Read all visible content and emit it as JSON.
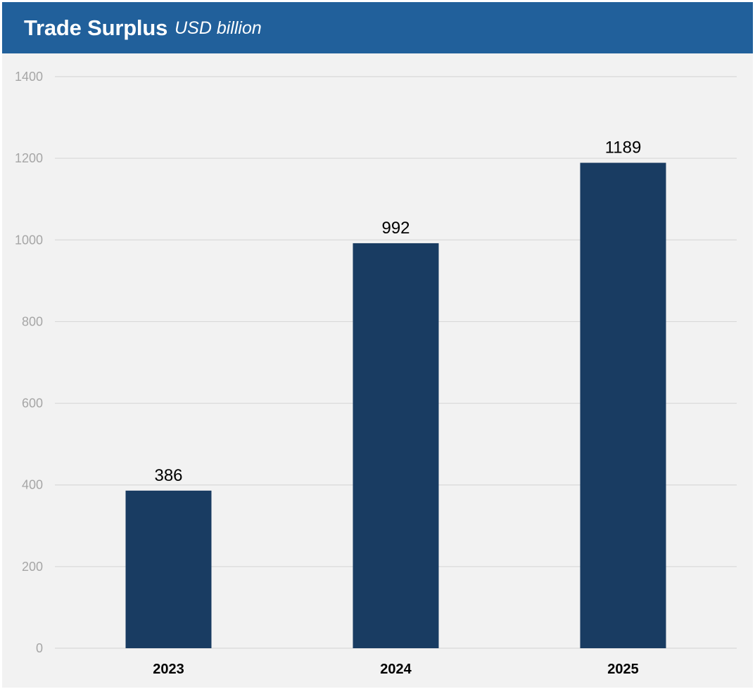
{
  "header": {
    "title": "Trade Surplus",
    "subtitle": "USD billion"
  },
  "colors": {
    "header_bg": "#21609b",
    "plot_bg": "#f2f2f2",
    "bar": "#193c62",
    "grid": "#d9d9d9"
  },
  "chart_data": {
    "type": "bar",
    "title": "Trade Surplus",
    "subtitle": "USD billion",
    "xlabel": "",
    "ylabel": "",
    "categories": [
      "2023",
      "2024",
      "2025"
    ],
    "values": [
      386,
      992,
      1189
    ],
    "data_labels": [
      "386",
      "992",
      "1189"
    ],
    "ylim": [
      0,
      1400
    ],
    "yticks": [
      0,
      200,
      400,
      600,
      800,
      1000,
      1200,
      1400
    ],
    "grid": true,
    "legend": "none"
  }
}
